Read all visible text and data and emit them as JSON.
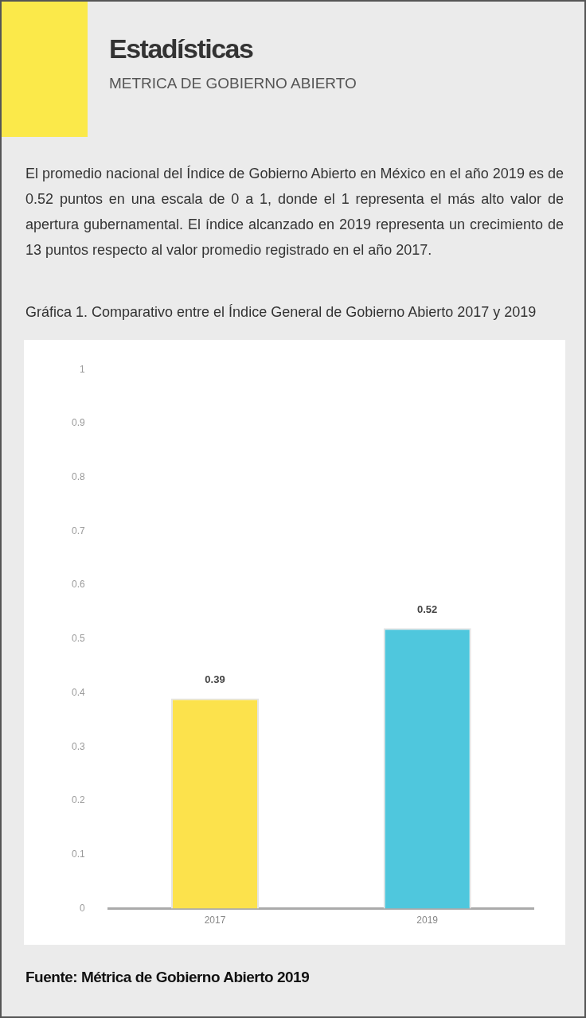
{
  "chart_data": {
    "type": "bar",
    "title": "Gráfica 1. Comparativo entre el Índice General de Gobierno Abierto 2017 y 2019",
    "categories": [
      "2017",
      "2019"
    ],
    "values": [
      0.39,
      0.52
    ],
    "colors": [
      "#fce24c",
      "#4fc7dd"
    ],
    "ylim": [
      0,
      1
    ],
    "yticks": [
      0,
      0.1,
      0.2,
      0.3,
      0.4,
      0.5,
      0.6,
      0.7,
      0.8,
      0.9,
      1
    ],
    "grid": false,
    "legend": false,
    "data_labels": true,
    "annotations": [
      "El promedio nacional del Índice de Gobierno Abierto en México en el año 2019 es de 0.52 puntos en una escala de 0 a 1, donde el 1 representa el más alto valor de apertura gubernamental. El índice alcanzado en 2019 representa un crecimiento de 13 puntos respecto al valor promedio registrado en el año 2017.",
      "Estadísticas",
      "METRICA DE GOBIERNO ABIERTO",
      "Fuente: Métrica de Gobierno Abierto 2019"
    ]
  }
}
